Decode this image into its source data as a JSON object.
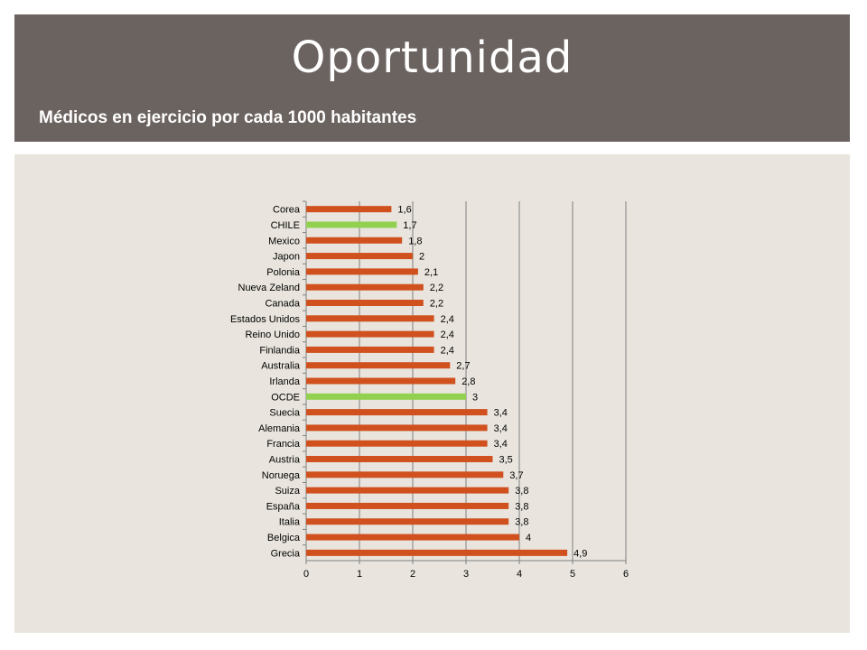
{
  "header": {
    "title": "Oportunidad",
    "subtitle": "Médicos en ejercicio por cada 1000 habitantes"
  },
  "colors": {
    "header_bg": "#6b6360",
    "content_bg": "#e9e5de",
    "bar_default": "#d0501e",
    "bar_highlight": "#92d050",
    "gridline": "#808080"
  },
  "chart_data": {
    "type": "bar",
    "orientation": "horizontal",
    "categories": [
      "Corea",
      "CHILE",
      "Mexico",
      "Japon",
      "Polonia",
      "Nueva Zeland",
      "Canada",
      "Estados Unidos",
      "Reino Unido",
      "Finlandia",
      "Australia",
      "Irlanda",
      "OCDE",
      "Suecia",
      "Alemania",
      "Francia",
      "Austria",
      "Noruega",
      "Suiza",
      "España",
      "Italia",
      "Belgica",
      "Grecia"
    ],
    "values": [
      1.6,
      1.7,
      1.8,
      2,
      2.1,
      2.2,
      2.2,
      2.4,
      2.4,
      2.4,
      2.7,
      2.8,
      3,
      3.4,
      3.4,
      3.4,
      3.5,
      3.7,
      3.8,
      3.8,
      3.8,
      4,
      4.9
    ],
    "data_labels": [
      "1,6",
      "1,7",
      "1,8",
      "2",
      "2,1",
      "2,2",
      "2,2",
      "2,4",
      "2,4",
      "2,4",
      "2,7",
      "2,8",
      "3",
      "3,4",
      "3,4",
      "3,4",
      "3,5",
      "3,7",
      "3,8",
      "3,8",
      "3,8",
      "4",
      "4,9"
    ],
    "highlighted": [
      "CHILE",
      "OCDE"
    ],
    "xlim": [
      0,
      6
    ],
    "x_ticks": [
      "0",
      "1",
      "2",
      "3",
      "4",
      "5",
      "6"
    ],
    "grid": true,
    "legend": "none"
  }
}
